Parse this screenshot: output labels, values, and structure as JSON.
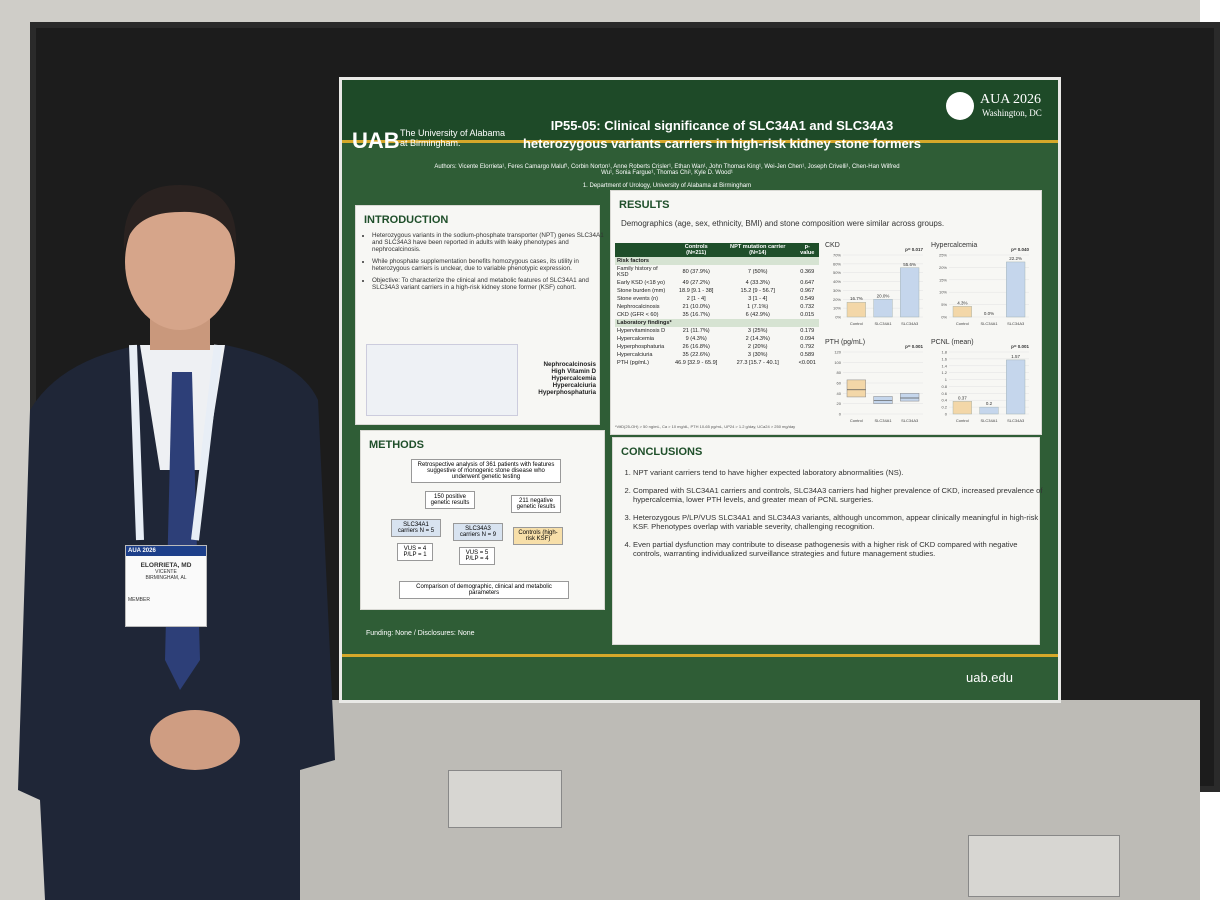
{
  "header": {
    "logo": "UAB",
    "institution": "The University of Alabama at Birmingham.",
    "title_line1": "IP55-05: Clinical significance of SLC34A1 and SLC34A3",
    "title_line2": "heterozygous variants carriers in high-risk kidney stone formers",
    "conference": "AUA 2026",
    "location": "Washington, DC",
    "authors": "Authors: Vicente Elorrieta¹, Feres Camargo Maluf¹, Corbin Norton¹, Anne Roberts Crisler¹, Ethan Wan¹, John Thomas King¹, Wei-Jen Chen¹, Joseph Crivelli¹, Chen-Han Wilfred Wu¹, Sonia Fargue¹, Thomas Chi¹, Kyle D. Wood¹",
    "affiliation": "1. Department of Urology, University of Alabama at Birmingham"
  },
  "introduction": {
    "heading": "INTRODUCTION",
    "bullets": [
      "Heterozygous variants in the sodium-phosphate transporter (NPT) genes SLC34A1 and SLC34A3 have been reported in adults with leaky phenotypes and nephrocalcinosis.",
      "While phosphate supplementation benefits homozygous cases, its utility in heterozygous carriers is unclear, due to variable phenotypic expression.",
      "Objective: To characterize the clinical and metabolic features of SLC34A1 and SLC34A3 variant carriers in a high-risk kidney stone former (KSF) cohort."
    ],
    "figure_labels": [
      "Nephrocalcinosis",
      "High Vitamin D",
      "Hypercalcemia",
      "Hypercalciuria",
      "Hyperphosphaturia"
    ]
  },
  "methods": {
    "heading": "METHODS",
    "start": "Retrospective analysis of 361 patients with features suggestive of monogenic stone disease who underwent genetic testing",
    "positive": "150 positive genetic results",
    "negative": "211 negative genetic results",
    "a1": "SLC34A1 carriers N = 5",
    "a3": "SLC34A3 carriers N = 9",
    "controls": "Controls (high-risk KSF)",
    "a1_split": "VUS = 4 P/LP = 1",
    "a3_split": "VUS = 5 P/LP = 4",
    "end": "Comparison of demographic, clinical and metabolic parameters"
  },
  "results": {
    "heading": "RESULTS",
    "bullet": "Demographics (age, sex, ethnicity, BMI) and stone composition were similar across groups.",
    "table": {
      "headers": [
        "Controls (N=211)",
        "NPT mutation carrier (N=14)",
        "p-value"
      ],
      "sections": [
        {
          "name": "Risk factors",
          "rows": [
            [
              "Family history of KSD",
              "80 (37.9%)",
              "7 (50%)",
              "0.369"
            ],
            [
              "Early KSD (<18 yo)",
              "49 (27.2%)",
              "4 (33.3%)",
              "0.647"
            ],
            [
              "Stone burden (mm)",
              "18.9 [9.1 - 38]",
              "15.2 [9 - 56.7]",
              "0.967"
            ],
            [
              "Stone events (n)",
              "2 [1 - 4]",
              "3 [1 - 4]",
              "0.549"
            ],
            [
              "Nephrocalcinosis",
              "21 (10.0%)",
              "1 (7.1%)",
              "0.732"
            ],
            [
              "CKD (GFR < 60)",
              "35 (16.7%)",
              "6 (42.9%)",
              "0.015"
            ]
          ]
        },
        {
          "name": "Laboratory findings*",
          "rows": [
            [
              "Hypervitaminosis D",
              "21 (11.7%)",
              "3 (25%)",
              "0.179"
            ],
            [
              "Hypercalcemia",
              "9 (4.3%)",
              "2 (14.3%)",
              "0.094"
            ],
            [
              "Hyperphosphaturia",
              "26 (16.8%)",
              "2 (20%)",
              "0.792"
            ],
            [
              "Hypercalciuria",
              "35 (22.6%)",
              "3 (30%)",
              "0.589"
            ],
            [
              "PTH (pg/mL)",
              "46.9 [32.9 - 65.9]",
              "27.3 [15.7 - 40.1]",
              "<0.001"
            ]
          ]
        }
      ],
      "footnote": "*VitD(25-OH) > 50 ng/mL, Ca > 10 mg/dL, PTH 10-65 pg/mL, UP24 > 1.2 g/day, UCa24 > 250 mg/day"
    },
    "colors": [
      "#f3d7a8",
      "#c5d6ec",
      "#c5d6ec"
    ],
    "charts": [
      {
        "type": "bar",
        "title": "CKD",
        "p": "p= 0.017",
        "categories": [
          "Control",
          "SLC34A1",
          "SLC34A3"
        ],
        "values": [
          16.7,
          20.0,
          55.6
        ],
        "value_labels": [
          "16.7%",
          "20.0%",
          "55.6%"
        ],
        "ylim": [
          0,
          70
        ],
        "yticks": [
          {
            "value": 0,
            "label": "0%"
          },
          {
            "value": 10,
            "label": "10%"
          },
          {
            "value": 20,
            "label": "20%"
          },
          {
            "value": 30,
            "label": "30%"
          },
          {
            "value": 40,
            "label": "40%"
          },
          {
            "value": 50,
            "label": "50%"
          },
          {
            "value": 60,
            "label": "60%"
          },
          {
            "value": 70,
            "label": "70%"
          }
        ]
      },
      {
        "type": "bar",
        "title": "Hypercalcemia",
        "p": "p= 0.040",
        "categories": [
          "Control",
          "SLC34A1",
          "SLC34A3"
        ],
        "values": [
          4.3,
          0.0,
          22.2
        ],
        "value_labels": [
          "4.3%",
          "0.0%",
          "22.2%"
        ],
        "ylim": [
          0,
          25
        ],
        "yticks": [
          {
            "value": 0,
            "label": "0%"
          },
          {
            "value": 5,
            "label": "5%"
          },
          {
            "value": 10,
            "label": "10%"
          },
          {
            "value": 15,
            "label": "15%"
          },
          {
            "value": 20,
            "label": "20%"
          },
          {
            "value": 25,
            "label": "25%"
          }
        ]
      },
      {
        "type": "box",
        "title": "PTH (pg/mL)",
        "p": "p= 0.001",
        "categories": [
          "Control",
          "SLC34A1",
          "SLC34A3"
        ],
        "q1": [
          33,
          20,
          25
        ],
        "median": [
          47,
          26,
          31
        ],
        "q3": [
          66,
          34,
          40
        ],
        "ylim": [
          0,
          120
        ],
        "yticks": [
          0,
          20,
          40,
          60,
          80,
          100,
          120
        ]
      },
      {
        "type": "bar",
        "title": "PCNL (mean)",
        "p": "p= 0.001",
        "categories": [
          "Control",
          "SLC34A1",
          "SLC34A3"
        ],
        "values": [
          0.37,
          0.2,
          1.57
        ],
        "ylim": [
          0,
          1.8
        ],
        "yticks": [
          0,
          0.2,
          0.4,
          0.6,
          0.8,
          1,
          1.2,
          1.4,
          1.6,
          1.8
        ]
      }
    ]
  },
  "conclusions": {
    "heading": "CONCLUSIONS",
    "bullets": [
      "NPT variant carriers tend to have higher expected laboratory abnormalities (NS).",
      "Compared with SLC34A1 carriers and controls, SLC34A3 carriers had higher prevalence of CKD, increased prevalence of hypercalcemia, lower PTH levels, and greater mean of PCNL surgeries.",
      "Heterozygous P/LP/VUS SLC34A1 and SLC34A3 variants, although uncommon, appear clinically meaningful in high-risk KSF. Phenotypes overlap with variable severity, challenging recognition.",
      "Even partial dysfunction may contribute to disease pathogenesis with a higher risk of CKD compared with negative controls, warranting individualized surveillance strategies and future management studies."
    ]
  },
  "footer": {
    "funding": "Funding: None / Disclosures: None",
    "url": "uab.edu"
  },
  "badge": {
    "event": "AUA 2026",
    "name": "ELORRIETA, MD",
    "first": "VICENTE",
    "city": "BIRMINGHAM, AL",
    "role": "MEMBER"
  }
}
